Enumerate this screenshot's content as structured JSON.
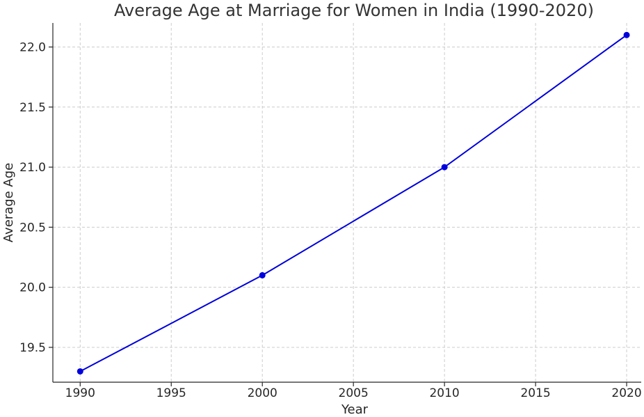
{
  "chart_data": {
    "type": "line",
    "title": "Average Age at Marriage for Women in India (1990-2020)",
    "xlabel": "Year",
    "ylabel": "Average Age",
    "x": [
      1990,
      2000,
      2010,
      2020
    ],
    "series": [
      {
        "values": [
          19.3,
          20.1,
          21.0,
          22.1
        ],
        "color": "#0000dd",
        "marker": "circle"
      }
    ],
    "xlim": [
      1988.5,
      2020.8
    ],
    "ylim": [
      19.21,
      22.2
    ],
    "xticks": [
      "1990",
      "1995",
      "2000",
      "2005",
      "2010",
      "2015",
      "2020"
    ],
    "yticks": [
      "19.5",
      "20.0",
      "20.5",
      "21.0",
      "21.5",
      "22.0"
    ],
    "grid": true
  }
}
